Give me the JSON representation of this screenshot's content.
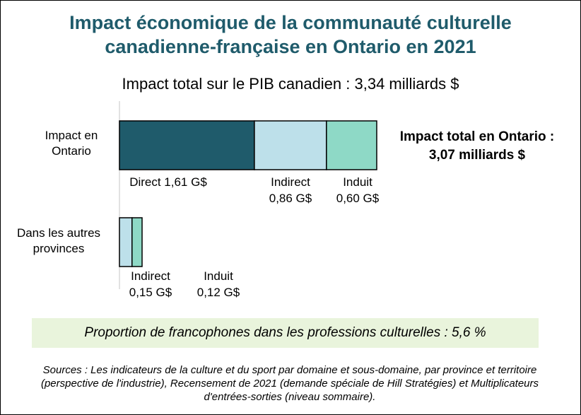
{
  "title_line1": "Impact économique de la communauté culturelle",
  "title_line2": "canadienne-française en Ontario en 2021",
  "subtitle": "Impact total sur le PIB canadien : 3,34 milliards $",
  "ontario_total_line1": "Impact total en Ontario :",
  "ontario_total_line2": "3,07 milliards $",
  "note": "Proportion de francophones dans les professions culturelles : 5,6 %",
  "source": "Sources : Les indicateurs de la culture et du sport par domaine et sous-domaine, par province et territoire (perspective de l'industrie), Recensement de 2021 (demande spéciale de Hill Stratégies) et Multiplicateurs d'entrées-sorties (niveau sommaire).",
  "colors": {
    "title": "#1f5b6b",
    "direct": "#1f5b6b",
    "indirect": "#bde0ea",
    "induit": "#8ed9c6",
    "note_bg": "#e9f4dc"
  },
  "chart_data": {
    "type": "bar",
    "orientation": "horizontal",
    "stacked": true,
    "unit": "G$",
    "categories": [
      "Impact en Ontario",
      "Dans les autres provinces"
    ],
    "category_labels": [
      {
        "line1": "Impact en",
        "line2": "Ontario"
      },
      {
        "line1": "Dans les autres",
        "line2": "provinces"
      }
    ],
    "series": [
      {
        "name": "Direct",
        "values": [
          1.61,
          0
        ],
        "color": "#1f5b6b"
      },
      {
        "name": "Indirect",
        "values": [
          0.86,
          0.15
        ],
        "color": "#bde0ea"
      },
      {
        "name": "Induit",
        "values": [
          0.6,
          0.12
        ],
        "color": "#8ed9c6"
      }
    ],
    "segment_labels": [
      [
        [
          "Direct 1,61 G$"
        ],
        [
          "Indirect",
          "0,86 G$"
        ],
        [
          "Induit",
          "0,60 G$"
        ]
      ],
      [
        [],
        [
          "Indirect",
          "0,15 G$"
        ],
        [
          "Induit",
          "0,12 G$"
        ]
      ]
    ],
    "xlim": [
      0,
      3.07
    ],
    "grid": false,
    "legend": "none"
  }
}
